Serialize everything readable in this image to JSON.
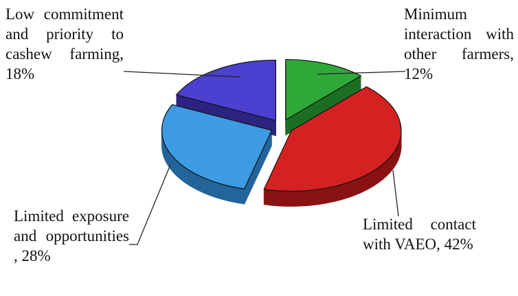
{
  "chart_data": {
    "type": "pie",
    "values": [
      12,
      42,
      28,
      18
    ],
    "value_labels": [
      "Minimum interaction with other farmers, 12%",
      "Limited contact with VAEO, 42%",
      "Limited exposure and opportunities , 28%",
      "Low commitment and priority to cashew farming, 18%"
    ],
    "colors": [
      "#2fa83a",
      "#d42222",
      "#3d9be3",
      "#4b40d0"
    ],
    "side_colors": [
      "#1d6e24",
      "#8a1212",
      "#23659a",
      "#2c2480"
    ]
  }
}
